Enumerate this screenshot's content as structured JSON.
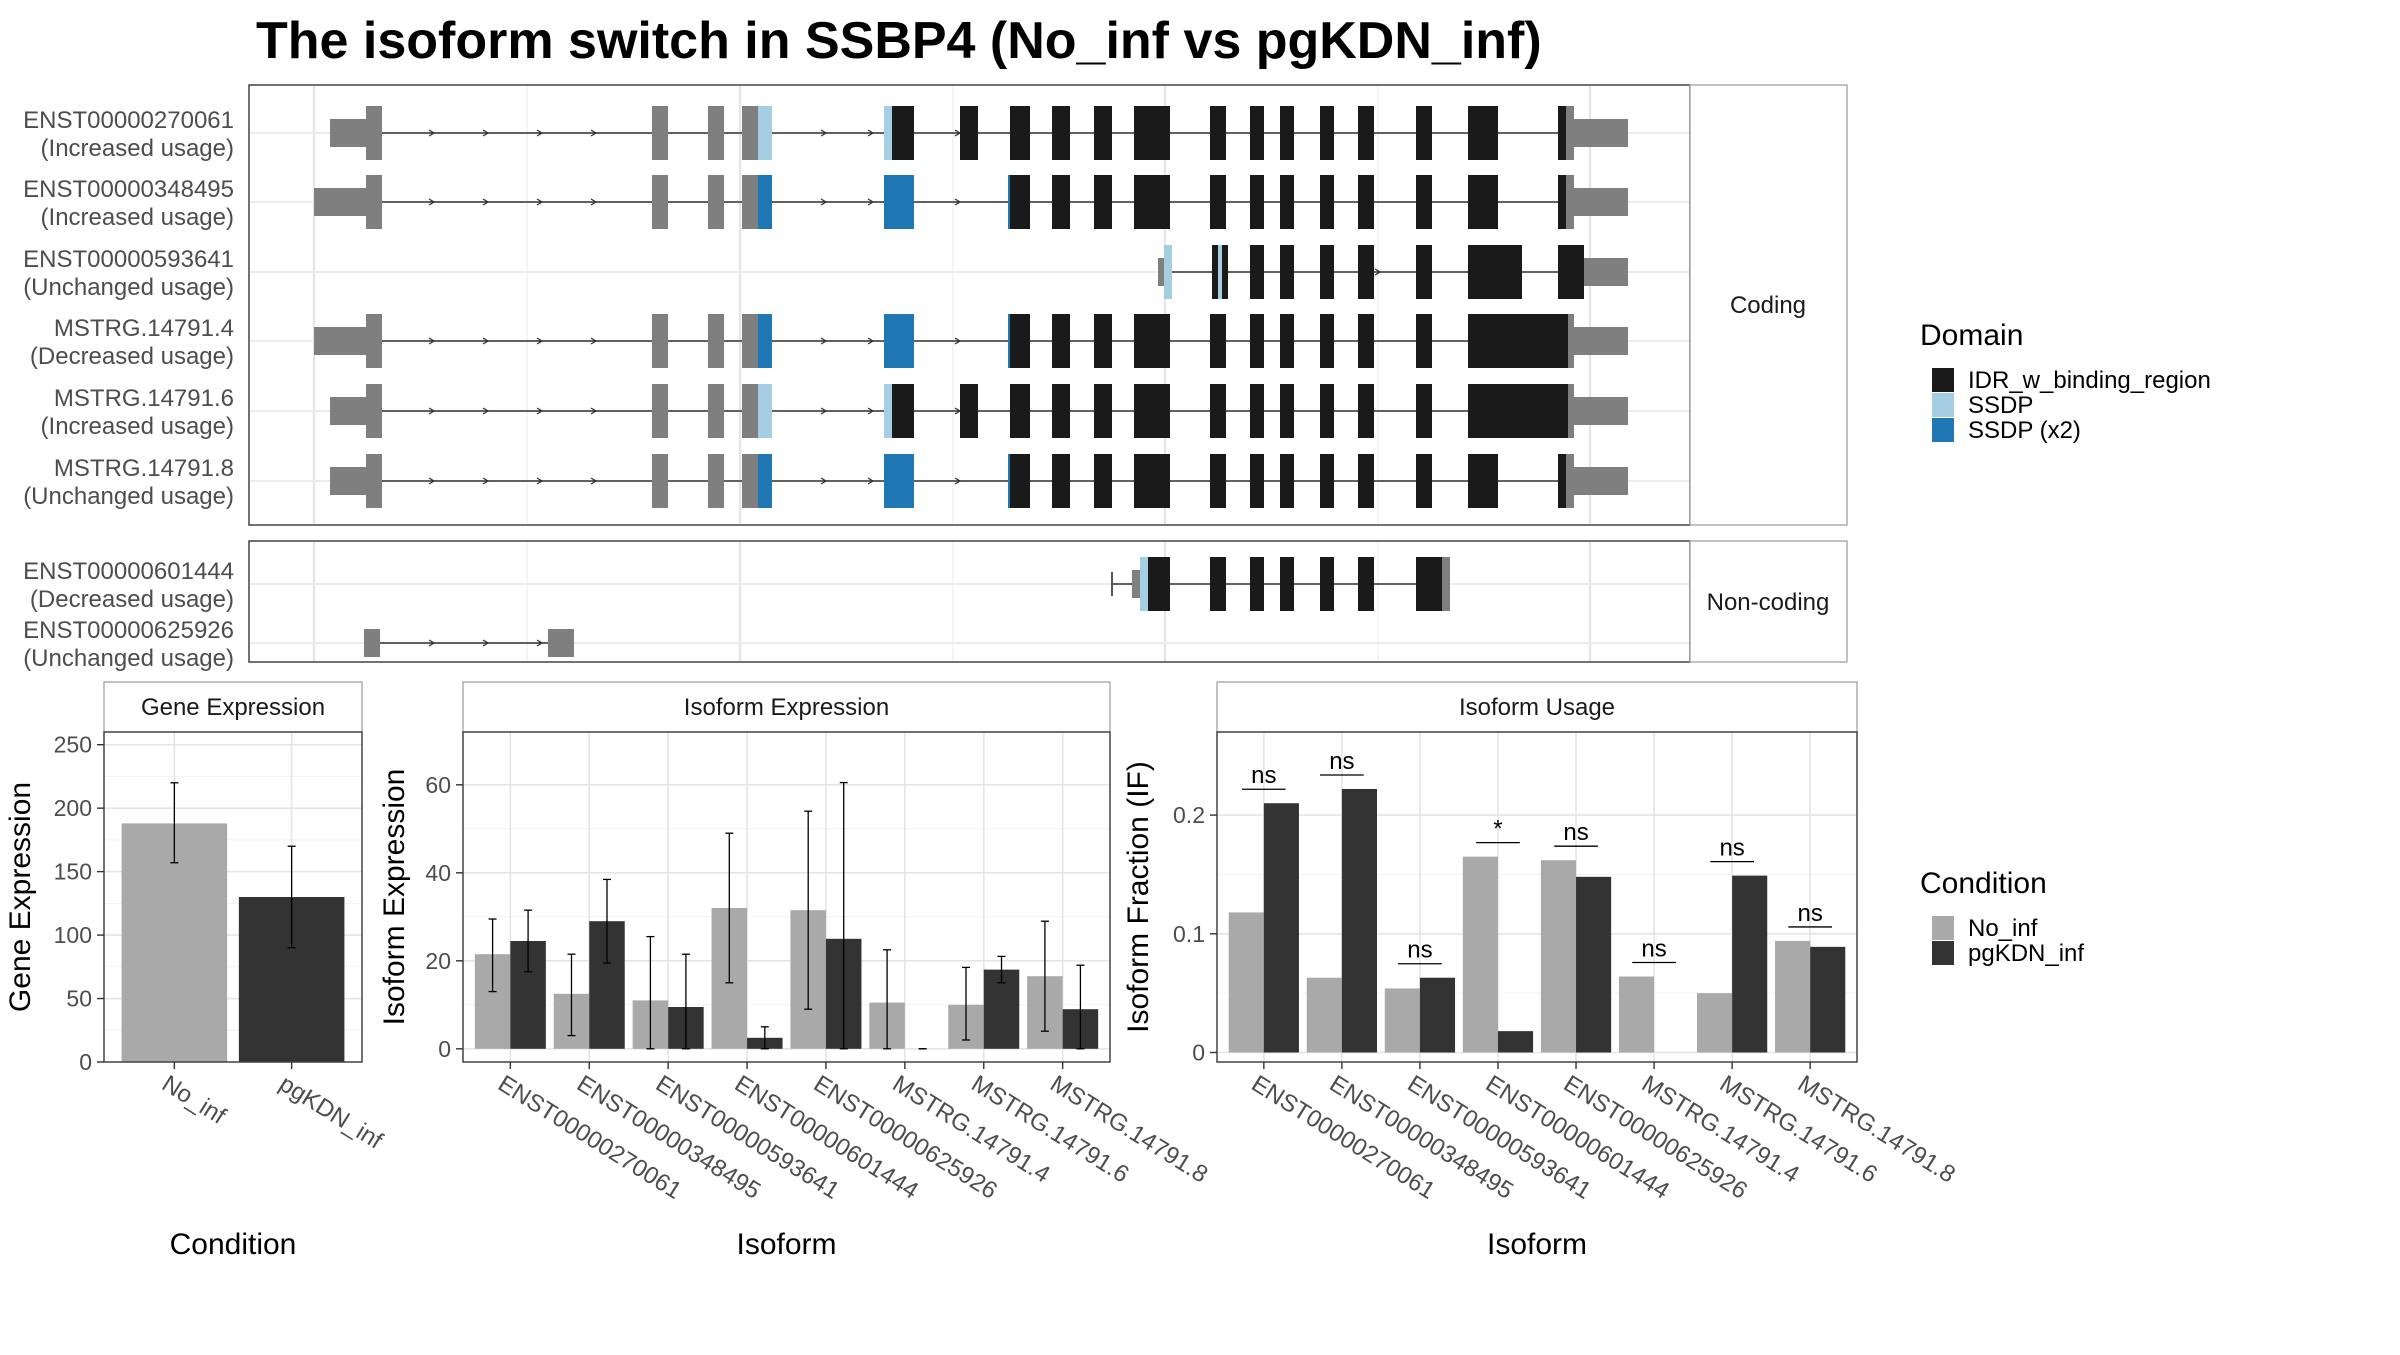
{
  "title": "The isoform switch in SSBP4 (No_inf vs pgKDN_inf)",
  "structure": {
    "coding_label": "Coding",
    "noncoding_label": "Non-coding",
    "coding_isoforms": [
      {
        "id": "ENST00000270061",
        "status": "(Increased usage)"
      },
      {
        "id": "ENST00000348495",
        "status": "(Increased usage)"
      },
      {
        "id": "ENST00000593641",
        "status": "(Unchanged usage)"
      },
      {
        "id": "MSTRG.14791.4",
        "status": "(Decreased usage)"
      },
      {
        "id": "MSTRG.14791.6",
        "status": "(Increased usage)"
      },
      {
        "id": "MSTRG.14791.8",
        "status": "(Unchanged usage)"
      }
    ],
    "noncoding_isoforms": [
      {
        "id": "ENST00000601444",
        "status": "(Decreased usage)"
      },
      {
        "id": "ENST00000625926",
        "status": "(Unchanged usage)"
      }
    ]
  },
  "domain_legend": {
    "title": "Domain",
    "items": [
      {
        "label": "IDR_w_binding_region",
        "color": "#1a1a1a"
      },
      {
        "label": "SSDP",
        "color": "#a6cee3"
      },
      {
        "label": "SSDP (x2)",
        "color": "#1f78b4"
      }
    ]
  },
  "condition_legend": {
    "title": "Condition",
    "items": [
      {
        "label": "No_inf",
        "color": "#a9a9a9"
      },
      {
        "label": "pgKDN_inf",
        "color": "#333333"
      }
    ]
  },
  "chart_data": [
    {
      "type": "bar",
      "panel": "Gene Expression",
      "xlabel": "Condition",
      "ylabel": "Gene Expression",
      "categories": [
        "No_inf",
        "pgKDN_inf"
      ],
      "values": [
        188,
        130
      ],
      "errors": [
        [
          157,
          220
        ],
        [
          90,
          170
        ]
      ],
      "ylim": [
        0,
        260
      ],
      "yticks": [
        0,
        50,
        100,
        150,
        200,
        250
      ]
    },
    {
      "type": "bar",
      "panel": "Isoform Expression",
      "xlabel": "Isoform",
      "ylabel": "Isoform Expression",
      "categories": [
        "ENST00000270061",
        "ENST00000348495",
        "ENST00000593641",
        "ENST00000601444",
        "ENST00000625926",
        "MSTRG.14791.4",
        "MSTRG.14791.6",
        "MSTRG.14791.8"
      ],
      "series": [
        {
          "name": "No_inf",
          "values": [
            21.5,
            12.5,
            11,
            32,
            31.5,
            10.5,
            10,
            16.5
          ],
          "errors": [
            [
              13,
              29.5
            ],
            [
              3,
              21.5
            ],
            [
              0,
              25.5
            ],
            [
              15,
              49
            ],
            [
              9,
              54
            ],
            [
              0,
              22.5
            ],
            [
              2,
              18.5
            ],
            [
              4,
              29
            ]
          ]
        },
        {
          "name": "pgKDN_inf",
          "values": [
            24.5,
            29,
            9.5,
            2.5,
            25,
            0,
            18,
            9
          ],
          "errors": [
            [
              17.5,
              31.5
            ],
            [
              19.5,
              38.5
            ],
            [
              0,
              21.5
            ],
            [
              0,
              5
            ],
            [
              0,
              60.5
            ],
            [
              0,
              0
            ],
            [
              15,
              21
            ],
            [
              0,
              19
            ]
          ]
        }
      ],
      "ylim": [
        -3,
        72
      ],
      "yticks": [
        0,
        20,
        40,
        60
      ]
    },
    {
      "type": "bar",
      "panel": "Isoform Usage",
      "xlabel": "Isoform",
      "ylabel": "Isoform Fraction (IF)",
      "categories": [
        "ENST00000270061",
        "ENST00000348495",
        "ENST00000593641",
        "ENST00000601444",
        "ENST00000625926",
        "MSTRG.14791.4",
        "MSTRG.14791.6",
        "MSTRG.14791.8"
      ],
      "series": [
        {
          "name": "No_inf",
          "values": [
            0.118,
            0.063,
            0.054,
            0.165,
            0.162,
            0.064,
            0.05,
            0.094
          ]
        },
        {
          "name": "pgKDN_inf",
          "values": [
            0.21,
            0.222,
            0.063,
            0.018,
            0.148,
            0,
            0.149,
            0.089
          ]
        }
      ],
      "significance": [
        "ns",
        "ns",
        "ns",
        "*",
        "ns",
        "ns",
        "ns",
        "ns"
      ],
      "ylim": [
        -0.008,
        0.27
      ],
      "yticks": [
        0.0,
        0.1,
        0.2
      ]
    }
  ]
}
